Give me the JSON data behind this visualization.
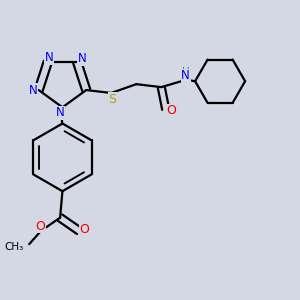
{
  "bg_color": "#d4d8e4",
  "atom_colors": {
    "N": "#0000ee",
    "S": "#b8a000",
    "O": "#ee0000",
    "C": "#000000",
    "H": "#4a8a8a"
  },
  "bond_color": "#000000",
  "bond_width": 1.6
}
